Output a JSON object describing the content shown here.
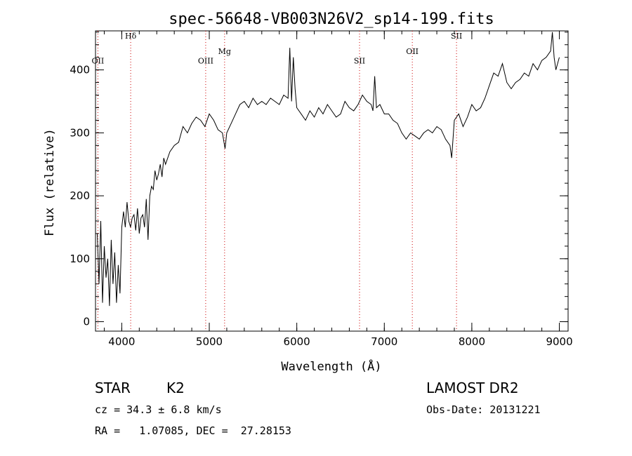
{
  "chart_data": {
    "type": "line",
    "title": "spec-56648-VB003N26V2_sp14-199.fits",
    "xlabel": "Wavelength (Å)",
    "ylabel": "Flux (relative)",
    "xlim": [
      3700,
      9100
    ],
    "ylim": [
      -15,
      462
    ],
    "grid": false,
    "x_ticks": [
      4000,
      5000,
      6000,
      7000,
      8000,
      9000
    ],
    "x_tick_labels": [
      "4000",
      "5000",
      "6000",
      "7000",
      "8000",
      "9000"
    ],
    "y_ticks": [
      0,
      100,
      200,
      300,
      400
    ],
    "y_tick_labels": [
      "0",
      "100",
      "200",
      "300",
      "400"
    ],
    "x_minor_step": 200,
    "y_minor_step": 20,
    "spectrum": {
      "x": [
        3720,
        3740,
        3760,
        3780,
        3800,
        3820,
        3840,
        3860,
        3880,
        3900,
        3920,
        3940,
        3960,
        3980,
        4000,
        4020,
        4040,
        4060,
        4080,
        4100,
        4120,
        4140,
        4160,
        4180,
        4200,
        4220,
        4240,
        4260,
        4280,
        4300,
        4320,
        4340,
        4360,
        4380,
        4400,
        4420,
        4440,
        4460,
        4480,
        4500,
        4550,
        4600,
        4650,
        4700,
        4750,
        4800,
        4850,
        4900,
        4950,
        5000,
        5050,
        5100,
        5150,
        5180,
        5200,
        5250,
        5300,
        5350,
        5400,
        5450,
        5500,
        5550,
        5600,
        5650,
        5700,
        5750,
        5800,
        5850,
        5900,
        5920,
        5940,
        5960,
        5980,
        6000,
        6050,
        6100,
        6150,
        6200,
        6250,
        6300,
        6350,
        6400,
        6450,
        6500,
        6550,
        6600,
        6650,
        6700,
        6750,
        6800,
        6850,
        6870,
        6890,
        6910,
        6950,
        7000,
        7050,
        7100,
        7150,
        7200,
        7250,
        7300,
        7350,
        7400,
        7450,
        7500,
        7550,
        7600,
        7650,
        7700,
        7750,
        7770,
        7800,
        7850,
        7900,
        7950,
        8000,
        8050,
        8100,
        8150,
        8200,
        8250,
        8300,
        8350,
        8400,
        8450,
        8500,
        8550,
        8600,
        8650,
        8700,
        8750,
        8800,
        8850,
        8900,
        8920,
        8940,
        8960,
        8980,
        9000
      ],
      "y": [
        140,
        60,
        160,
        30,
        120,
        70,
        100,
        25,
        130,
        60,
        110,
        30,
        90,
        45,
        150,
        175,
        150,
        190,
        160,
        150,
        165,
        170,
        145,
        180,
        140,
        165,
        170,
        150,
        195,
        130,
        200,
        215,
        210,
        240,
        225,
        235,
        250,
        230,
        260,
        250,
        270,
        280,
        285,
        310,
        300,
        315,
        325,
        320,
        310,
        330,
        320,
        305,
        300,
        275,
        300,
        315,
        330,
        345,
        350,
        340,
        355,
        345,
        350,
        345,
        355,
        350,
        345,
        360,
        355,
        435,
        350,
        420,
        370,
        340,
        330,
        320,
        335,
        325,
        340,
        330,
        345,
        335,
        325,
        330,
        350,
        340,
        335,
        345,
        360,
        350,
        345,
        335,
        390,
        340,
        345,
        330,
        330,
        320,
        315,
        300,
        290,
        300,
        295,
        290,
        300,
        305,
        300,
        310,
        305,
        290,
        280,
        260,
        320,
        330,
        310,
        325,
        345,
        335,
        340,
        355,
        375,
        395,
        390,
        410,
        380,
        370,
        380,
        385,
        395,
        390,
        410,
        400,
        415,
        420,
        430,
        460,
        420,
        400,
        410,
        420
      ]
    },
    "lines": [
      {
        "label": "OII",
        "x": 3727,
        "label_y": 410
      },
      {
        "label": "Hδ",
        "x": 4102,
        "label_y": 450
      },
      {
        "label": "OIII",
        "x": 4959,
        "label_y": 410
      },
      {
        "label": "Mg",
        "x": 5175,
        "label_y": 425
      },
      {
        "label": "SII",
        "x": 6717,
        "label_y": 410
      },
      {
        "label": "OII",
        "x": 7320,
        "label_y": 425
      },
      {
        "label": "SII",
        "x": 7825,
        "label_y": 450
      }
    ],
    "annotations": [],
    "colors": {
      "spectrum": "#000000",
      "emission_lines": "#cc0000"
    }
  },
  "info": {
    "object_type": "STAR",
    "subclass": "K2",
    "survey": "LAMOST DR2",
    "cz_text": "cz = 34.3 ± 6.8 km/s",
    "obs_date_text": "Obs-Date: 20131221",
    "coords_text": "RA =   1.07085, DEC =  27.28153"
  }
}
